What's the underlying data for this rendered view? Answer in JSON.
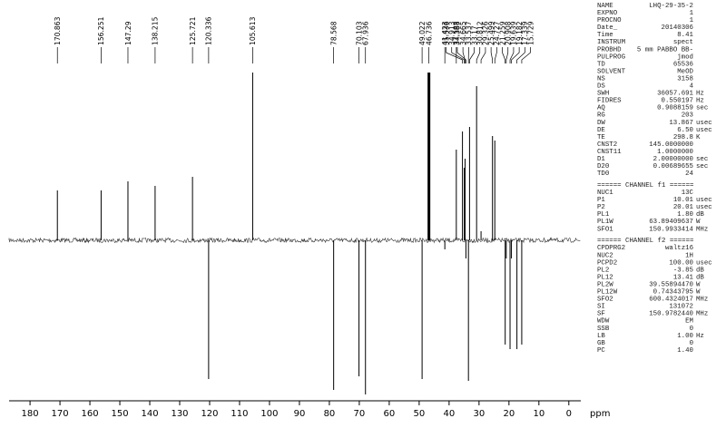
{
  "chart_data": {
    "type": "spectrum",
    "peaks": [
      170.863,
      156.251,
      147.29,
      138.215,
      125.721,
      120.336,
      105.613,
      78.568,
      70.103,
      67.936,
      49.022,
      46.736,
      41.423,
      37.588,
      35.536,
      34.913,
      34.383,
      34.665,
      33.537,
      33.17,
      30.812,
      29.326,
      25.499,
      24.727,
      21.259,
      20.908,
      19.639,
      19.182,
      17.339,
      15.729
    ],
    "intensities": [
      55,
      55,
      65,
      60,
      70,
      -153,
      185,
      -165,
      -150,
      -170,
      -153,
      185,
      -10,
      100,
      120,
      80,
      -20,
      90,
      -155,
      125,
      170,
      10,
      115,
      110,
      -115,
      -20,
      -120,
      -20,
      -120,
      -115
    ],
    "color": "#000000",
    "xlim": [
      187,
      -4
    ],
    "xticks": [
      180,
      170,
      160,
      150,
      140,
      130,
      120,
      110,
      100,
      90,
      80,
      70,
      60,
      50,
      40,
      30,
      20,
      10,
      0
    ],
    "xlabel": "ppm",
    "ylim": [
      -175,
      190
    ]
  },
  "parameters": {
    "rows": [
      [
        "NAME",
        "LHQ-29-35-2",
        ""
      ],
      [
        "EXPNO",
        "1",
        ""
      ],
      [
        "PROCNO",
        "1",
        ""
      ],
      [
        "Date_",
        "20140306",
        ""
      ],
      [
        "Time",
        "8.41",
        ""
      ],
      [
        "INSTRUM",
        "spect",
        ""
      ],
      [
        "PROBHD",
        "5 mm PABBO BB-",
        ""
      ],
      [
        "PULPROG",
        "jmod",
        ""
      ],
      [
        "TD",
        "65536",
        ""
      ],
      [
        "SOLVENT",
        "MeOD",
        ""
      ],
      [
        "NS",
        "3158",
        ""
      ],
      [
        "DS",
        "4",
        ""
      ],
      [
        "SWH",
        "36057.691",
        "Hz"
      ],
      [
        "FIDRES",
        "0.550197",
        "Hz"
      ],
      [
        "AQ",
        "0.9088159",
        "sec"
      ],
      [
        "RG",
        "203",
        ""
      ],
      [
        "DW",
        "13.867",
        "usec"
      ],
      [
        "DE",
        "6.50",
        "usec"
      ],
      [
        "TE",
        "298.8",
        "K"
      ],
      [
        "CNST2",
        "145.0000000",
        ""
      ],
      [
        "CNST11",
        "1.0000000",
        ""
      ],
      [
        "D1",
        "2.00000000",
        "sec"
      ],
      [
        "D20",
        "0.00689655",
        "sec"
      ],
      [
        "TD0",
        "24",
        ""
      ]
    ],
    "channel_f1": {
      "header": "====== CHANNEL f1 ======",
      "rows": [
        [
          "NUC1",
          "13C",
          ""
        ],
        [
          "P1",
          "10.01",
          "usec"
        ],
        [
          "P2",
          "20.01",
          "usec"
        ],
        [
          "PL1",
          "1.80",
          "dB"
        ],
        [
          "PL1W",
          "63.89409637",
          "W"
        ],
        [
          "SFO1",
          "150.9933414",
          "MHz"
        ]
      ]
    },
    "channel_f2": {
      "header": "====== CHANNEL f2 ======",
      "rows": [
        [
          "CPDPRG2",
          "waltz16",
          ""
        ],
        [
          "NUC2",
          "1H",
          ""
        ],
        [
          "PCPD2",
          "100.00",
          "usec"
        ],
        [
          "PL2",
          "-3.85",
          "dB"
        ],
        [
          "PL12",
          "13.41",
          "dB"
        ],
        [
          "PL2W",
          "39.55894470",
          "W"
        ],
        [
          "PL12W",
          "0.74343795",
          "W"
        ],
        [
          "SFO2",
          "600.4324017",
          "MHz"
        ],
        [
          "SI",
          "131072",
          ""
        ],
        [
          "SF",
          "150.9782440",
          "MHz"
        ],
        [
          "WDW",
          "EM",
          ""
        ],
        [
          "SSB",
          "0",
          ""
        ],
        [
          "LB",
          "1.00",
          "Hz"
        ],
        [
          "GB",
          "0",
          ""
        ],
        [
          "PC",
          "1.40",
          ""
        ]
      ]
    }
  }
}
